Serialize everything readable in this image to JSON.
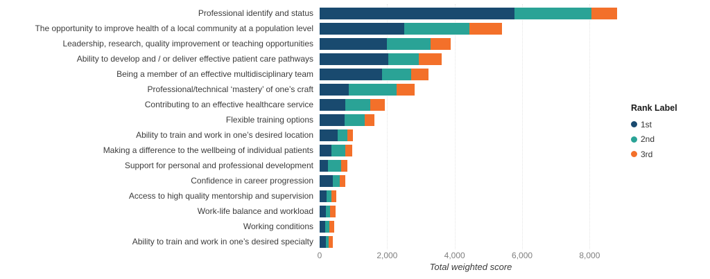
{
  "chart_data": {
    "type": "bar",
    "orientation": "horizontal",
    "stacked": true,
    "title": "",
    "xlabel": "Total weighted score",
    "ylabel": "",
    "xlim": [
      0,
      8960
    ],
    "xticks": [
      0,
      2000,
      4000,
      6000,
      8000
    ],
    "xtick_labels": [
      "0",
      "2,000",
      "4,000",
      "6,000",
      "8,000"
    ],
    "grid": "vertical-dotted",
    "legend": {
      "title": "Rank Label",
      "position": "right",
      "entries": [
        "1st",
        "2nd",
        "3rd"
      ]
    },
    "categories": [
      "Professional identify and status",
      "The opportunity to improve health of a local community at a population level",
      "Leadership, research, quality improvement or teaching opportunities",
      "Ability to develop and / or deliver effective patient care pathways",
      "Being a member of an effective multidisciplinary team",
      "Professional/technical ‘mastery’ of one’s craft",
      "Contributing to an effective healthcare service",
      "Flexible training options",
      "Ability to train and work in one’s desired location",
      "Making a difference to the wellbeing of individual patients",
      "Support for personal and professional development",
      "Confidence in career progression",
      "Access to high quality mentorship and supervision",
      "Work-life balance and workload",
      "Working conditions",
      "Ability to train and work in one’s desired specialty"
    ],
    "series": [
      {
        "name": "1st",
        "color": "#194a6f",
        "values": [
          5780,
          2500,
          1990,
          2030,
          1850,
          870,
          765,
          745,
          530,
          355,
          255,
          390,
          205,
          180,
          165,
          180
        ]
      },
      {
        "name": "2nd",
        "color": "#2aa396",
        "values": [
          2280,
          1930,
          1295,
          905,
          855,
          1405,
          735,
          590,
          290,
          400,
          380,
          205,
          150,
          125,
          125,
          95
        ]
      },
      {
        "name": "3rd",
        "color": "#f3702a",
        "values": [
          760,
          970,
          590,
          685,
          525,
          545,
          430,
          290,
          170,
          205,
          190,
          160,
          140,
          165,
          135,
          110
        ]
      }
    ]
  },
  "colors": {
    "background": "#ffffff",
    "label_text": "#3b3b3b",
    "tick_text": "#7f7f7f",
    "gridline": "#e4e4e4"
  }
}
